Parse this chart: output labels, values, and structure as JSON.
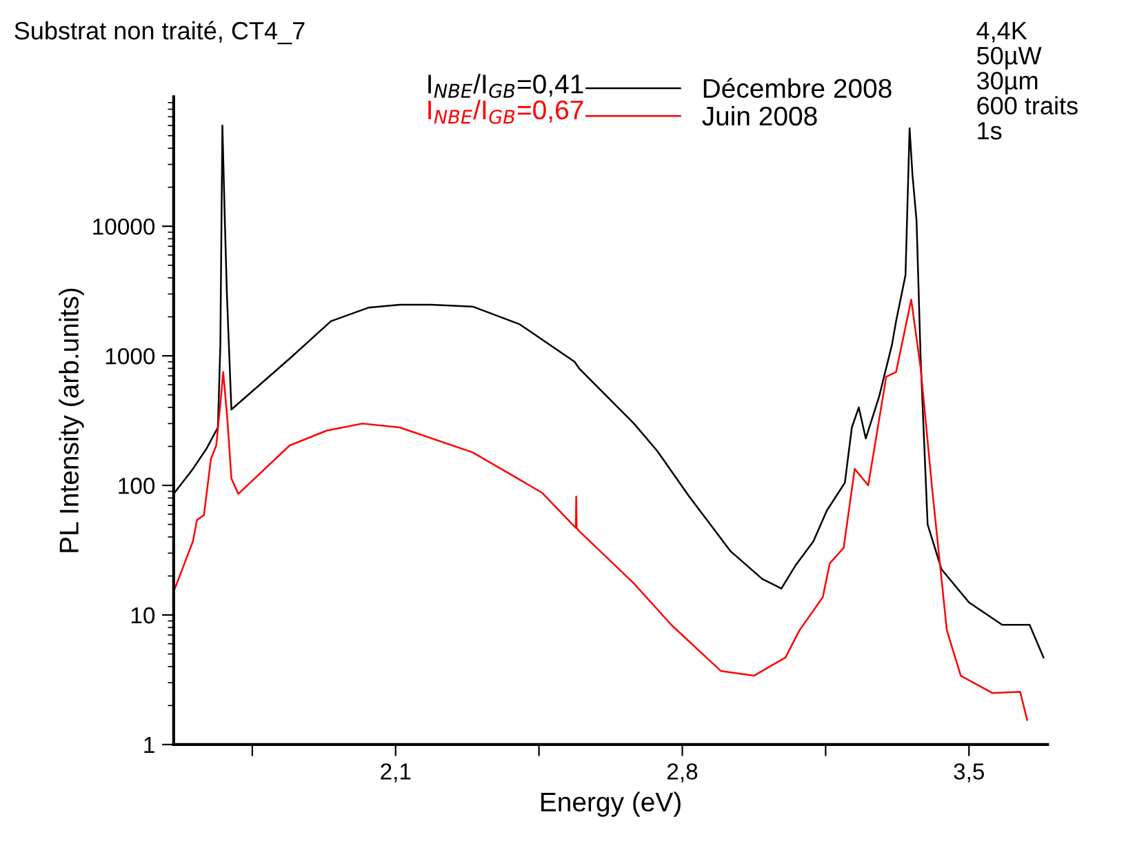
{
  "chart_data": {
    "type": "line",
    "title": "Substrat non traité, CT4_7",
    "xlabel": "Energy (eV)",
    "ylabel": "PL Intensity (arb.units)",
    "annotations": [
      "I$_{NBE}$/I$_{GB}$=0,41",
      "I$_{NBE}$/I$_{GB}$=0,67",
      "4,4K\n50µW\n30µm\n600 traits\n1s"
    ],
    "log": "y",
    "xlim": [
      1.558,
      3.692
    ],
    "ylim": [
      1,
      100000
    ],
    "xticks": [
      {
        "value": 1.75,
        "label": null
      },
      {
        "value": 2.1,
        "label": "2,1"
      },
      {
        "value": 2.45,
        "label": null
      },
      {
        "value": 2.8,
        "label": "2,8"
      },
      {
        "value": 3.15,
        "label": null
      },
      {
        "value": 3.5,
        "label": "3,5"
      }
    ],
    "yticks": [
      1,
      10,
      100,
      1000,
      10000
    ],
    "legend": "top",
    "grid": false,
    "marker": "none",
    "line_style": "solid",
    "series": [
      {
        "name": "Décembre 2008",
        "color": "#000000",
        "x": [
          1.558,
          1.605,
          1.639,
          1.666,
          1.672,
          1.677,
          1.683,
          1.688,
          1.699,
          1.841,
          1.942,
          2.033,
          2.11,
          2.187,
          2.288,
          2.403,
          2.537,
          2.548,
          2.682,
          2.739,
          2.817,
          2.918,
          2.995,
          3.042,
          3.076,
          3.12,
          3.153,
          3.197,
          3.214,
          3.231,
          3.248,
          3.281,
          3.312,
          3.322,
          3.345,
          3.355,
          3.362,
          3.372,
          3.382,
          3.399,
          3.433,
          3.5,
          3.581,
          3.648,
          3.682
        ],
        "values": [
          86,
          134,
          194,
          280,
          1200,
          60000,
          11000,
          3000,
          385,
          950,
          1850,
          2350,
          2480,
          2480,
          2400,
          1750,
          900,
          800,
          300,
          184,
          82,
          31,
          19,
          16,
          24,
          37,
          64,
          105,
          280,
          400,
          230,
          490,
          1220,
          1850,
          4200,
          57000,
          25000,
          11000,
          950,
          50,
          22.5,
          12.5,
          8.4,
          8.4,
          4.7
        ]
      },
      {
        "name": "Juin 2008",
        "color": "#ff0000",
        "x": [
          1.561,
          1.605,
          1.615,
          1.632,
          1.649,
          1.662,
          1.672,
          1.679,
          1.689,
          1.699,
          1.716,
          1.841,
          1.932,
          2.019,
          2.11,
          2.288,
          2.457,
          2.54,
          2.541,
          2.542,
          2.548,
          2.682,
          2.773,
          2.894,
          2.975,
          3.052,
          3.086,
          3.143,
          3.16,
          3.194,
          3.221,
          3.254,
          3.298,
          3.322,
          3.359,
          3.382,
          3.412,
          3.446,
          3.48,
          3.557,
          3.625,
          3.642
        ],
        "values": [
          16,
          37,
          54,
          59,
          160,
          203,
          425,
          750,
          330,
          113,
          86,
          203,
          265,
          300,
          280,
          180,
          88,
          47,
          82,
          47,
          44.5,
          17.5,
          8.4,
          3.7,
          3.4,
          4.7,
          7.6,
          13.7,
          25,
          33,
          134,
          100,
          690,
          750,
          2720,
          800,
          82,
          7.6,
          3.4,
          2.5,
          2.55,
          1.55
        ]
      }
    ]
  }
}
